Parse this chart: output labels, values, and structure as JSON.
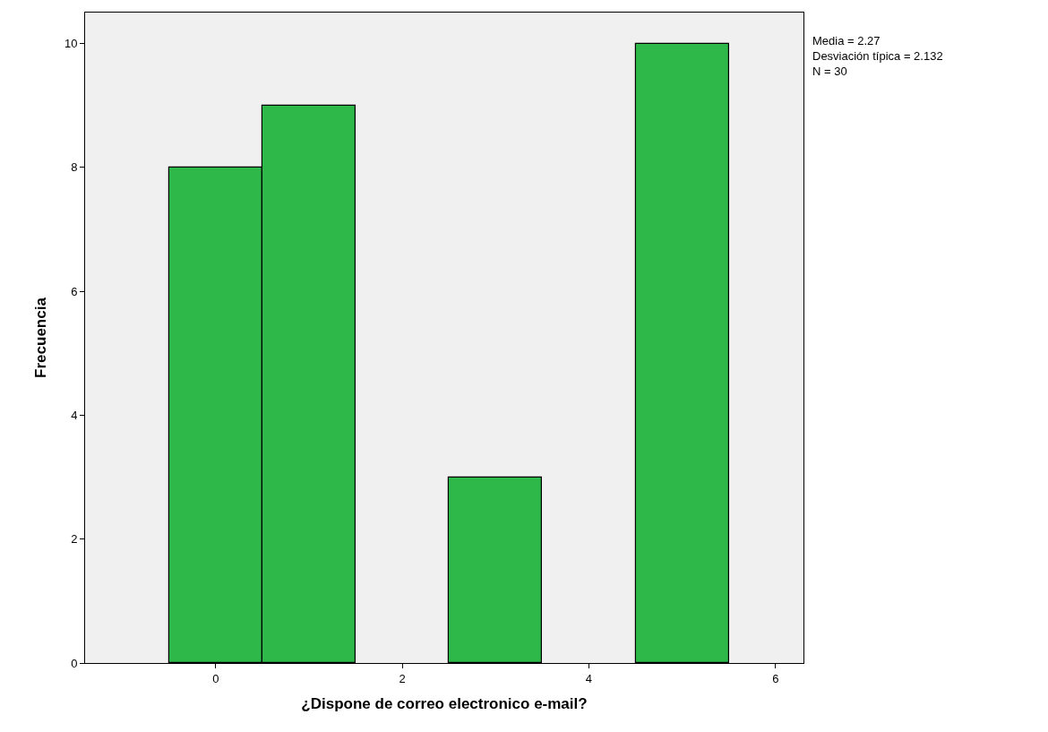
{
  "chart_data": {
    "type": "histogram",
    "xlabel": "¿Dispone de correo electronico e-mail?",
    "ylabel": "Frecuencia",
    "bins": [
      -0.5,
      0.5,
      1.5,
      2.5,
      3.5,
      4.5,
      5.5
    ],
    "values": [
      8,
      9,
      0,
      3,
      0,
      10
    ],
    "color": "#2eb84a",
    "xlim": [
      -1.4,
      6.3
    ],
    "xticks": [
      0,
      2,
      4,
      6
    ],
    "ylim": [
      0,
      10.5
    ],
    "yticks": [
      0,
      2,
      4,
      6,
      8,
      10
    ],
    "grid": false,
    "annotations": [
      "Media = 2.27",
      "Desviación típica = 2.132",
      "N = 30"
    ]
  }
}
